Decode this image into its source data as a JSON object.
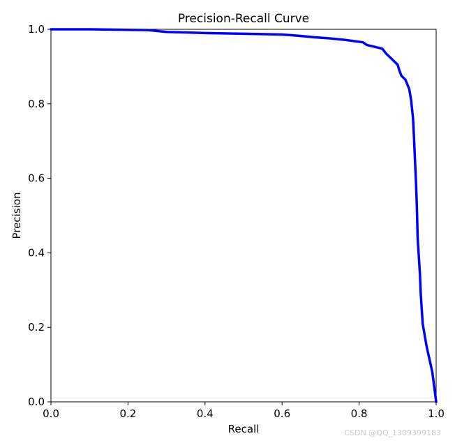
{
  "watermark": "CSDN @QQ_1309399183",
  "chart_data": {
    "type": "line",
    "title": "Precision-Recall Curve",
    "xlabel": "Recall",
    "ylabel": "Precision",
    "xlim": [
      0.0,
      1.0
    ],
    "ylim": [
      0.0,
      1.0
    ],
    "xticks": [
      "0.0",
      "0.2",
      "0.4",
      "0.6",
      "0.8",
      "1.0"
    ],
    "yticks": [
      "0.0",
      "0.2",
      "0.4",
      "0.6",
      "0.8",
      "1.0"
    ],
    "grid": false,
    "series": [
      {
        "color": "#0000ff",
        "x": [
          0.0,
          0.1,
          0.25,
          0.3,
          0.4,
          0.5,
          0.6,
          0.64,
          0.68,
          0.72,
          0.76,
          0.79,
          0.81,
          0.82,
          0.84,
          0.86,
          0.87,
          0.88,
          0.9,
          0.905,
          0.91,
          0.92,
          0.93,
          0.935,
          0.94,
          0.942,
          0.945,
          0.948,
          0.95,
          0.952,
          0.955,
          0.958,
          0.96,
          0.965,
          0.975,
          0.99,
          1.0
        ],
        "y": [
          1.0,
          1.0,
          0.998,
          0.993,
          0.99,
          0.988,
          0.986,
          0.983,
          0.979,
          0.976,
          0.972,
          0.968,
          0.965,
          0.958,
          0.953,
          0.948,
          0.935,
          0.925,
          0.905,
          0.888,
          0.875,
          0.865,
          0.84,
          0.81,
          0.76,
          0.72,
          0.65,
          0.58,
          0.52,
          0.44,
          0.39,
          0.34,
          0.29,
          0.21,
          0.15,
          0.08,
          0.0
        ]
      }
    ]
  }
}
